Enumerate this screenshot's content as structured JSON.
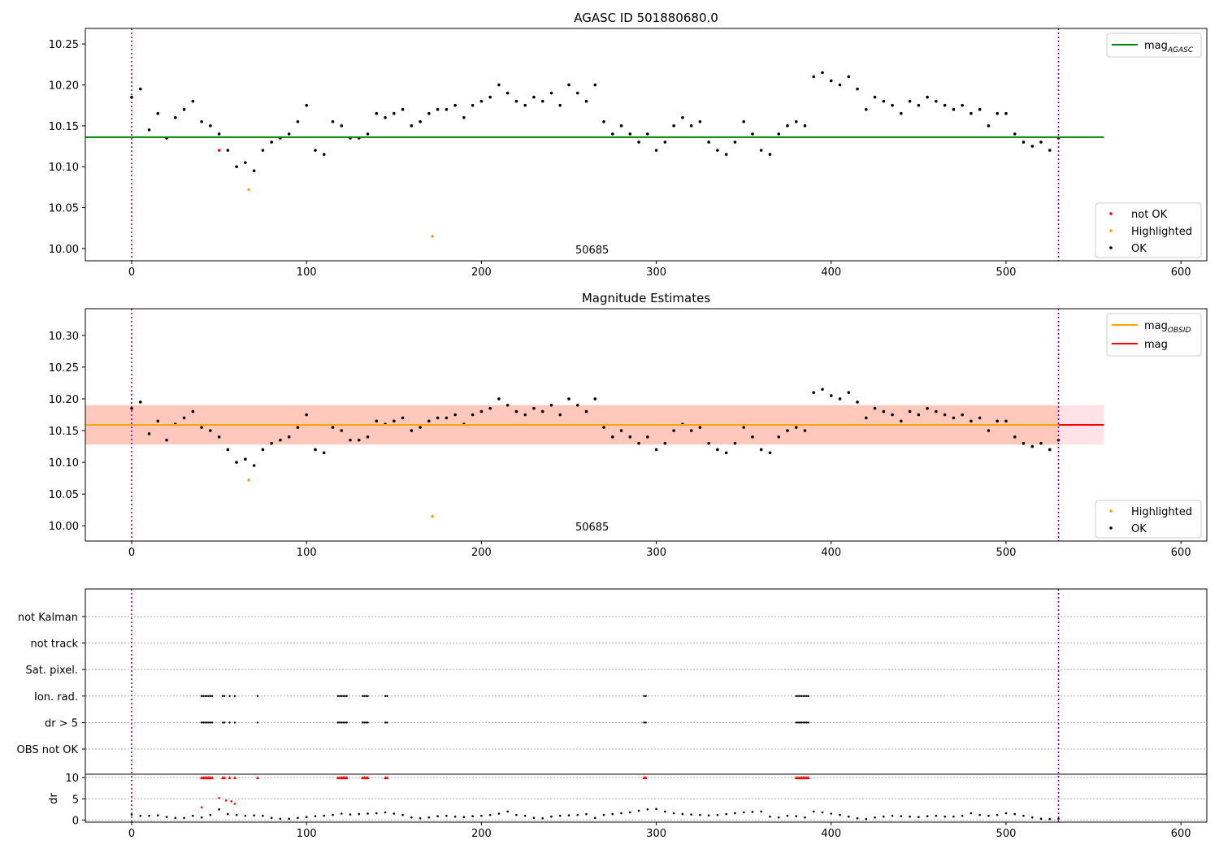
{
  "chart_data": [
    {
      "type": "scatter",
      "title": "AGASC ID 501880680.0",
      "xlim": [
        -26.5,
        614.8
      ],
      "ylim": [
        9.985,
        10.269
      ],
      "xticks": [
        0,
        100,
        200,
        300,
        400,
        500,
        600
      ],
      "yticks": [
        "10.00",
        "10.05",
        "10.10",
        "10.15",
        "10.20",
        "10.25"
      ],
      "mag_agasc": 10.136,
      "vlines": [
        0,
        530
      ],
      "annotation": {
        "text": "50685",
        "x": 263,
        "y": 10.0
      },
      "legend_line": [
        {
          "label": "mag",
          "sub": "AGASC",
          "color": "#008000"
        }
      ],
      "legend_points": [
        {
          "label": "not OK",
          "color": "#ff0000"
        },
        {
          "label": "Highlighted",
          "color": "#ffa500"
        },
        {
          "label": "OK",
          "color": "#000000"
        }
      ],
      "highlighted": [
        [
          67,
          10.072
        ],
        [
          172,
          10.015
        ]
      ],
      "not_ok": [
        [
          50,
          10.12
        ]
      ]
    },
    {
      "type": "scatter",
      "title": "Magnitude Estimates",
      "xlim": [
        -26.5,
        614.8
      ],
      "ylim": [
        9.976,
        10.342
      ],
      "xticks": [
        0,
        100,
        200,
        300,
        400,
        500,
        600
      ],
      "yticks": [
        "10.00",
        "10.05",
        "10.10",
        "10.15",
        "10.20",
        "10.25",
        "10.30"
      ],
      "mag": 10.159,
      "band": [
        10.128,
        10.19
      ],
      "vlines": [
        0,
        530
      ],
      "annotation": {
        "text": "50685",
        "x": 263,
        "y": 10.0
      },
      "legend_line": [
        {
          "label": "mag",
          "sub": "OBSID",
          "color": "#ffa500"
        },
        {
          "label": "mag",
          "sub": "",
          "color": "#ff0000"
        }
      ],
      "legend_points": [
        {
          "label": "Highlighted",
          "color": "#ffa500"
        },
        {
          "label": "OK",
          "color": "#000000"
        }
      ],
      "highlighted": [
        [
          67,
          10.072
        ],
        [
          172,
          10.015
        ]
      ]
    },
    {
      "type": "scatter",
      "rows": [
        "not Kalman",
        "not track",
        "Sat. pixel.",
        "Ion. rad.",
        "dr > 5",
        "OBS not OK"
      ],
      "flag_rows": [
        "Ion. rad.",
        "dr > 5"
      ],
      "flag_x": [
        40,
        41,
        42,
        43,
        44,
        45,
        46,
        52,
        53,
        56,
        59,
        72,
        118,
        119,
        120,
        121,
        122,
        123,
        132,
        133,
        134,
        135,
        145,
        146,
        293,
        294,
        380,
        381,
        382,
        383,
        384,
        385,
        386,
        387
      ]
    },
    {
      "type": "scatter",
      "ylabel": "dr",
      "ylim": [
        -0.5,
        10.8
      ],
      "yticks": [
        "0",
        "5",
        "10"
      ],
      "xticks": [
        0,
        100,
        200,
        300,
        400,
        500,
        600
      ],
      "red_points": [
        [
          40,
          3.0
        ],
        [
          50,
          5.2
        ],
        [
          54,
          4.6
        ],
        [
          57,
          4.4
        ],
        [
          59,
          3.8
        ]
      ],
      "dr_x_step": 5,
      "dr": [
        1.3,
        1.0,
        1.0,
        1.1,
        0.7,
        0.5,
        0.5,
        1.0,
        0.6,
        1.2,
        2.5,
        1.4,
        1.2,
        1.0,
        1.1,
        1.0,
        0.5,
        0.3,
        0.3,
        0.5,
        0.7,
        0.9,
        1.0,
        1.2,
        1.5,
        1.3,
        1.4,
        1.5,
        1.6,
        1.8,
        1.5,
        1.2,
        0.6,
        0.4,
        0.6,
        0.9,
        1.0,
        0.8,
        0.7,
        0.9,
        1.0,
        1.2,
        1.5,
        2.0,
        1.2,
        1.0,
        0.5,
        0.4,
        0.8,
        1.0,
        1.1,
        1.2,
        1.4,
        0.5,
        1.2,
        1.4,
        1.6,
        1.8,
        2.2,
        2.5,
        2.6,
        2.0,
        1.6,
        1.4,
        1.3,
        1.2,
        1.1,
        1.2,
        1.4,
        1.6,
        1.8,
        1.9,
        2.0,
        0.8,
        0.6,
        1.0,
        0.9,
        0.6,
        2.0,
        1.8,
        1.5,
        1.2,
        0.8,
        0.4,
        0.2,
        0.6,
        0.8,
        1.0,
        0.9,
        0.8,
        0.7,
        0.9,
        1.0,
        0.8,
        0.8,
        1.0,
        1.6,
        1.2,
        1.0,
        1.2,
        1.6,
        1.4,
        1.0,
        0.6,
        0.3,
        0.2,
        0.3
      ]
    },
    {
      "type": "scatter",
      "name": "ok_points",
      "x_step": 5,
      "mag": [
        10.185,
        10.195,
        10.145,
        10.165,
        10.135,
        10.16,
        10.17,
        10.18,
        10.155,
        10.15,
        10.14,
        10.12,
        10.1,
        10.105,
        10.095,
        10.12,
        10.13,
        10.135,
        10.14,
        10.155,
        10.175,
        10.12,
        10.115,
        10.155,
        10.15,
        10.135,
        10.135,
        10.14,
        10.165,
        10.16,
        10.165,
        10.17,
        10.15,
        10.155,
        10.165,
        10.17,
        10.17,
        10.175,
        10.16,
        10.175,
        10.18,
        10.185,
        10.2,
        10.19,
        10.18,
        10.175,
        10.185,
        10.18,
        10.19,
        10.175,
        10.2,
        10.19,
        10.18,
        10.2,
        10.155,
        10.14,
        10.15,
        10.14,
        10.13,
        10.14,
        10.12,
        10.13,
        10.15,
        10.16,
        10.15,
        10.155,
        10.13,
        10.12,
        10.115,
        10.13,
        10.155,
        10.14,
        10.12,
        10.115,
        10.14,
        10.15,
        10.155,
        10.15,
        10.21,
        10.215,
        10.205,
        10.2,
        10.21,
        10.195,
        10.17,
        10.185,
        10.18,
        10.175,
        10.165,
        10.18,
        10.175,
        10.185,
        10.18,
        10.175,
        10.17,
        10.175,
        10.165,
        10.17,
        10.15,
        10.165,
        10.165,
        10.14,
        10.13,
        10.125,
        10.13,
        10.12,
        10.135
      ]
    }
  ]
}
